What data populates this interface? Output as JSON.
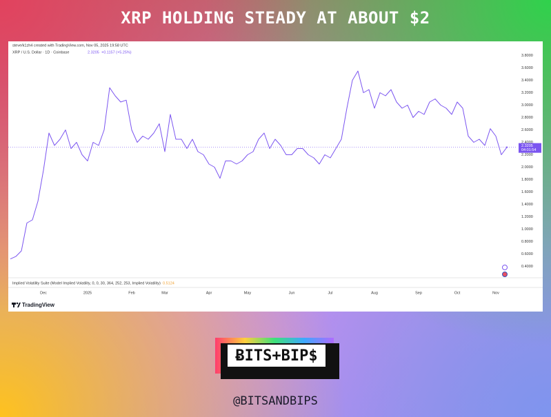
{
  "header": {
    "title": "XRP HOLDING STEADY AT ABOUT $2"
  },
  "chart_data": {
    "type": "line",
    "attribution": "steve/k1zh4 created with TradingView.com, Nov 05, 2025 19:58 UTC",
    "symbol": "XRP / U.S. Dollar · 1D · Coinbase",
    "price": "2.3205",
    "change": "+0.1157 (+5.25%)",
    "price_label": "2.3205",
    "countdown": "04:01:54",
    "indicator": "Implied Volatility Suite (Model Implied Volatility, 0, 0, 30, 364, 252, 253, Implied Volatility)",
    "indicator_value": "0.5124",
    "brand": "TradingView",
    "color": "#7b55f0",
    "grid": false,
    "categories": [
      null,
      null,
      null,
      null,
      null,
      null,
      "Dec",
      null,
      null,
      null,
      null,
      null,
      null,
      null,
      "2025",
      null,
      null,
      null,
      null,
      null,
      null,
      null,
      "Feb",
      null,
      null,
      null,
      null,
      null,
      "Mar",
      null,
      null,
      null,
      null,
      null,
      null,
      null,
      "Apr",
      null,
      null,
      null,
      null,
      null,
      null,
      "May",
      null,
      null,
      null,
      null,
      null,
      null,
      null,
      "Jun",
      null,
      null,
      null,
      null,
      null,
      null,
      "Jul",
      null,
      null,
      null,
      null,
      null,
      null,
      null,
      "Aug",
      null,
      null,
      null,
      null,
      null,
      null,
      null,
      "Sep",
      null,
      null,
      null,
      null,
      null,
      null,
      "Oct",
      null,
      null,
      null,
      null,
      null,
      null,
      "Nov",
      null,
      null
    ],
    "values": [
      0.52,
      0.56,
      0.65,
      1.1,
      1.15,
      1.45,
      1.95,
      2.55,
      2.35,
      2.45,
      2.6,
      2.3,
      2.4,
      2.2,
      2.1,
      2.4,
      2.35,
      2.6,
      3.28,
      3.15,
      3.05,
      3.08,
      2.6,
      2.4,
      2.5,
      2.45,
      2.55,
      2.7,
      2.25,
      2.85,
      2.45,
      2.45,
      2.3,
      2.45,
      2.25,
      2.2,
      2.05,
      2.0,
      1.82,
      2.1,
      2.1,
      2.05,
      2.1,
      2.2,
      2.25,
      2.45,
      2.55,
      2.3,
      2.45,
      2.35,
      2.2,
      2.2,
      2.3,
      2.3,
      2.2,
      2.15,
      2.05,
      2.2,
      2.15,
      2.3,
      2.45,
      2.95,
      3.4,
      3.55,
      3.2,
      3.25,
      2.95,
      3.2,
      3.15,
      3.25,
      3.05,
      2.95,
      3.0,
      2.8,
      2.9,
      2.85,
      3.05,
      3.1,
      3.0,
      2.95,
      2.85,
      3.05,
      2.95,
      2.5,
      2.4,
      2.45,
      2.35,
      2.62,
      2.5,
      2.2,
      2.3205
    ],
    "ylim": [
      0.25,
      3.95
    ],
    "yticks": [
      {
        "value": 0.4,
        "label": "0.4000"
      },
      {
        "value": 0.6,
        "label": "0.6000"
      },
      {
        "value": 0.8,
        "label": "0.8000"
      },
      {
        "value": 1.0,
        "label": "1.0000"
      },
      {
        "value": 1.2,
        "label": "1.2000"
      },
      {
        "value": 1.4,
        "label": "1.4000"
      },
      {
        "value": 1.6,
        "label": "1.6000"
      },
      {
        "value": 1.8,
        "label": "1.8000"
      },
      {
        "value": 2.0,
        "label": "2.0000"
      },
      {
        "value": 2.2,
        "label": "2.2000"
      },
      {
        "value": 2.4,
        "label": "2.4000"
      },
      {
        "value": 2.6,
        "label": "2.6000"
      },
      {
        "value": 2.8,
        "label": "2.8000"
      },
      {
        "value": 3.0,
        "label": "3.0000"
      },
      {
        "value": 3.2,
        "label": "3.2000"
      },
      {
        "value": 3.4,
        "label": "3.4000"
      },
      {
        "value": 3.6,
        "label": "3.6000"
      },
      {
        "value": 3.8,
        "label": "3.8000"
      }
    ]
  },
  "logo": {
    "text": "ɃITS+BIP$"
  },
  "footer": {
    "handle": "@BITSANDBIPS"
  }
}
